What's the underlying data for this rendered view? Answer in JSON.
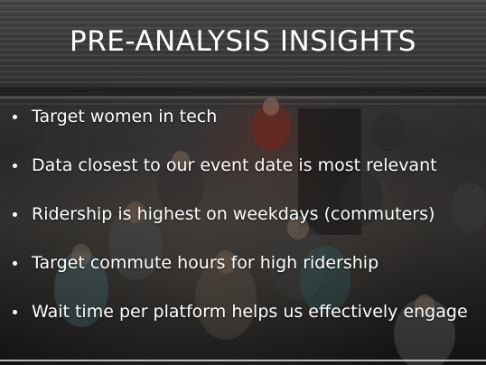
{
  "slide": {
    "title": "PRE-ANALYSIS INSIGHTS",
    "bullets": [
      "Target women in tech",
      "Data closest to our event date is most relevant",
      "Ridership is highest on weekdays (commuters)",
      "Target commute hours for high ridership",
      "Wait time per platform helps us effectively engage"
    ],
    "colors": {
      "text": "#ffffff",
      "background": "#2a2a2c",
      "accent_red": "#9a2a20"
    }
  }
}
